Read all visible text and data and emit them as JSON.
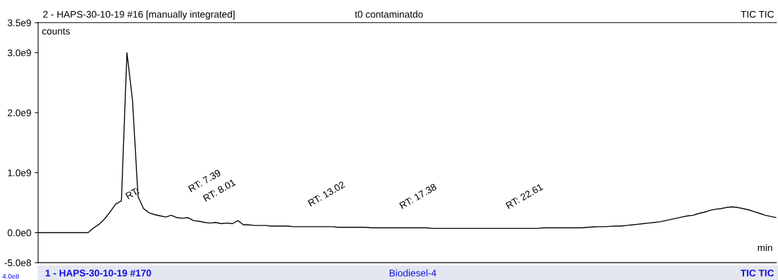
{
  "chart_data": {
    "type": "line",
    "title": "2 - HAPS-30-10-19 #16 [manually integrated]",
    "subtitle": "t0 contaminatdo",
    "ylabel": "counts",
    "xlabel": "min",
    "categories": [
      null,
      null,
      null,
      null,
      null,
      null,
      null,
      null,
      null,
      null,
      null,
      null,
      null,
      null,
      null,
      null,
      null,
      null,
      null,
      null,
      null,
      null,
      null,
      null,
      null,
      null,
      null,
      null,
      null,
      null,
      null,
      null,
      null,
      null,
      null,
      null,
      null,
      null,
      null,
      null,
      null,
      null,
      null,
      null,
      null,
      null,
      null,
      null,
      null,
      null,
      null,
      null,
      null,
      null,
      null,
      null,
      null,
      null,
      null,
      null,
      null,
      null,
      null,
      null,
      null,
      null,
      null,
      null,
      null,
      null,
      null,
      null,
      null,
      null,
      null,
      null,
      null,
      null,
      null,
      null,
      null,
      null,
      null,
      null,
      null,
      null,
      null,
      null,
      null,
      null,
      null,
      null,
      null,
      null,
      null,
      null,
      null,
      null,
      null,
      null,
      null,
      null,
      null,
      null,
      null,
      null,
      null,
      null,
      null,
      null,
      null,
      null,
      null,
      null,
      null,
      null,
      null,
      null,
      null,
      null,
      null,
      null,
      null,
      null,
      null,
      null,
      null,
      null,
      null,
      null,
      null,
      null,
      null,
      null
    ],
    "series": [
      {
        "color": "#000000",
        "values": [
          0,
          0,
          0,
          0,
          0,
          0,
          0,
          0,
          0,
          0,
          80000000.0,
          140000000.0,
          230000000.0,
          350000000.0,
          480000000.0,
          530000000.0,
          3000000000.0,
          2210000000.0,
          600000000.0,
          400000000.0,
          330000000.0,
          300000000.0,
          280000000.0,
          260000000.0,
          290000000.0,
          250000000.0,
          240000000.0,
          250000000.0,
          200000000.0,
          190000000.0,
          170000000.0,
          160000000.0,
          170000000.0,
          150000000.0,
          160000000.0,
          150000000.0,
          200000000.0,
          130000000.0,
          130000000.0,
          120000000.0,
          120000000.0,
          120000000.0,
          110000000.0,
          110000000.0,
          110000000.0,
          110000000.0,
          100000000.0,
          100000000.0,
          100000000.0,
          100000000.0,
          100000000.0,
          100000000.0,
          100000000.0,
          100000000.0,
          90000000.0,
          90000000.0,
          90000000.0,
          90000000.0,
          90000000.0,
          90000000.0,
          80000000.0,
          80000000.0,
          80000000.0,
          80000000.0,
          80000000.0,
          80000000.0,
          80000000.0,
          80000000.0,
          80000000.0,
          80000000.0,
          80000000.0,
          70000000.0,
          70000000.0,
          70000000.0,
          70000000.0,
          70000000.0,
          70000000.0,
          70000000.0,
          70000000.0,
          70000000.0,
          70000000.0,
          70000000.0,
          70000000.0,
          70000000.0,
          70000000.0,
          70000000.0,
          70000000.0,
          70000000.0,
          70000000.0,
          70000000.0,
          70000000.0,
          80000000.0,
          80000000.0,
          80000000.0,
          80000000.0,
          80000000.0,
          80000000.0,
          80000000.0,
          80000000.0,
          90000000.0,
          95000000.0,
          100000000.0,
          100000000.0,
          105000000.0,
          110000000.0,
          110000000.0,
          120000000.0,
          130000000.0,
          140000000.0,
          150000000.0,
          160000000.0,
          170000000.0,
          180000000.0,
          200000000.0,
          220000000.0,
          240000000.0,
          260000000.0,
          280000000.0,
          290000000.0,
          320000000.0,
          340000000.0,
          370000000.0,
          390000000.0,
          400000000.0,
          420000000.0,
          430000000.0,
          420000000.0,
          400000000.0,
          380000000.0,
          350000000.0,
          320000000.0,
          290000000.0,
          270000000.0,
          250000000.0
        ]
      }
    ],
    "ylim": [
      -500000000.0,
      3500000000.0
    ],
    "yticks": [
      {
        "value": 3500000000.0,
        "label": "3.5e9"
      },
      {
        "value": 3000000000.0,
        "label": "3.0e9"
      },
      {
        "value": 2000000000.0,
        "label": "2.0e9"
      },
      {
        "value": 1000000000.0,
        "label": "1.0e9"
      },
      {
        "value": 0,
        "label": "0.0e0"
      },
      {
        "value": -500000000.0,
        "label": "-5.0e8"
      }
    ],
    "annotations": [
      "RT:",
      "RT: 7.39",
      "RT: 8.01",
      "RT: 13.02",
      "RT: 17.38",
      "RT: 22.61",
      "TIC TIC",
      "1 - HAPS-30-10-19 #170",
      "Biodiesel-4",
      "TIC TIC",
      "4.0e8"
    ]
  }
}
